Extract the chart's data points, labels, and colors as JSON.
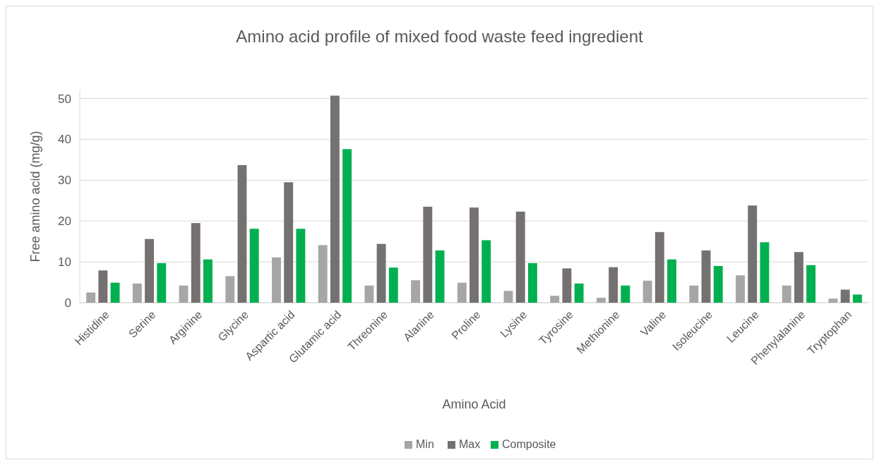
{
  "chart_data": {
    "type": "bar",
    "title": "Amino acid profile of mixed food waste feed ingredient",
    "xlabel": "Amino Acid",
    "ylabel": "Free amino acid (mg/g)",
    "categories": [
      "Histidine",
      "Serine",
      "Arginine",
      "Glycine",
      "Aspartic acid",
      "Glutamic acid",
      "Threonine",
      "Alanine",
      "Proline",
      "Lysine",
      "Tyrosine",
      "Methionine",
      "Valine",
      "Isoleucine",
      "Leucine",
      "Phenylalanine",
      "Tryptophan"
    ],
    "series": [
      {
        "name": "Min",
        "color": "#a6a6a6",
        "values": [
          2.5,
          4.7,
          4.2,
          6.5,
          11.1,
          14.1,
          4.2,
          5.5,
          4.9,
          2.9,
          1.7,
          1.2,
          5.4,
          4.2,
          6.7,
          4.2,
          1.0
        ]
      },
      {
        "name": "Max",
        "color": "#767171",
        "values": [
          7.9,
          15.6,
          19.5,
          33.7,
          29.5,
          50.7,
          14.4,
          23.5,
          23.3,
          22.3,
          8.4,
          8.7,
          17.3,
          12.8,
          23.8,
          12.4,
          3.2
        ]
      },
      {
        "name": "Composite",
        "color": "#00b050",
        "values": [
          4.9,
          9.7,
          10.6,
          18.1,
          18.1,
          37.6,
          8.6,
          12.8,
          15.3,
          9.7,
          4.7,
          4.2,
          10.6,
          9.0,
          14.8,
          9.2,
          2.0
        ]
      }
    ],
    "ylim": [
      0,
      52
    ],
    "yticks": [
      0,
      10,
      20,
      30,
      40,
      50
    ],
    "grid": "y",
    "legend": "bottom"
  }
}
